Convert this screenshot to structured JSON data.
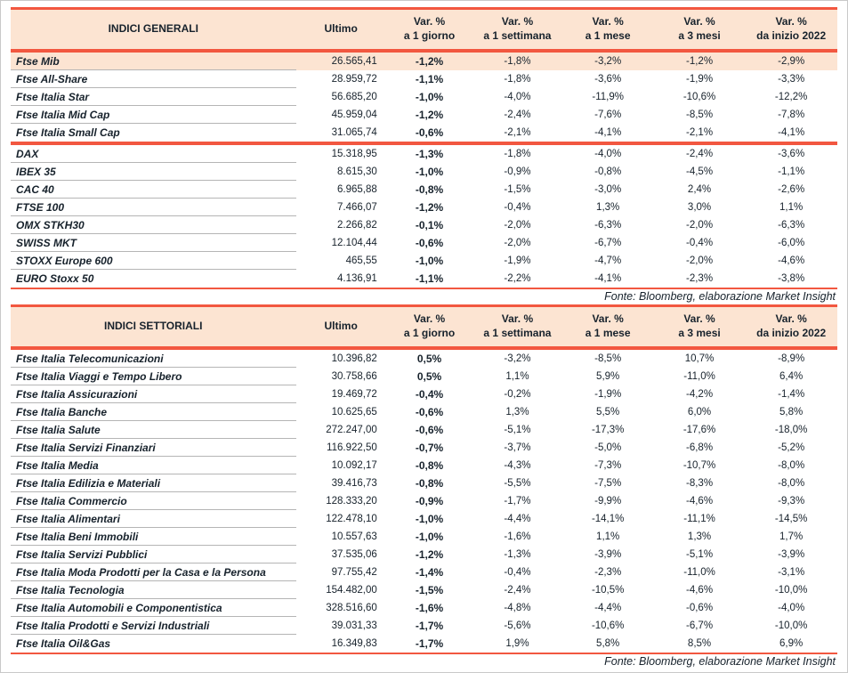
{
  "colors": {
    "accent_red": "#f25740",
    "header_bg": "#fce4d2",
    "highlight_row_bg": "#fce4d2",
    "text": "#17222c",
    "divider_gray": "#b5b5b5",
    "page_border": "#c9c9c9"
  },
  "tables": [
    {
      "title": "INDICI GENERALI",
      "ultimo_header": "Ultimo",
      "var_top": "Var. %",
      "var_periods": [
        "a 1 giorno",
        "a 1 settimana",
        "a 1 mese",
        "a 3 mesi",
        "da inizio 2022"
      ],
      "fonte": "Fonte: Bloomberg, elaborazione Market Insight",
      "groups": [
        {
          "rows": [
            {
              "name": "Ftse Mib",
              "ultimo": "26.565,41",
              "vars": [
                "-1,2%",
                "-1,8%",
                "-3,2%",
                "-1,2%",
                "-2,9%"
              ],
              "highlight": true
            },
            {
              "name": "Ftse All-Share",
              "ultimo": "28.959,72",
              "vars": [
                "-1,1%",
                "-1,8%",
                "-3,6%",
                "-1,9%",
                "-3,3%"
              ]
            },
            {
              "name": "Ftse Italia Star",
              "ultimo": "56.685,20",
              "vars": [
                "-1,0%",
                "-4,0%",
                "-11,9%",
                "-10,6%",
                "-12,2%"
              ]
            },
            {
              "name": "Ftse Italia Mid Cap",
              "ultimo": "45.959,04",
              "vars": [
                "-1,2%",
                "-2,4%",
                "-7,6%",
                "-8,5%",
                "-7,8%"
              ]
            },
            {
              "name": "Ftse Italia Small Cap",
              "ultimo": "31.065,74",
              "vars": [
                "-0,6%",
                "-2,1%",
                "-4,1%",
                "-2,1%",
                "-4,1%"
              ]
            }
          ]
        },
        {
          "rows": [
            {
              "name": "DAX",
              "ultimo": "15.318,95",
              "vars": [
                "-1,3%",
                "-1,8%",
                "-4,0%",
                "-2,4%",
                "-3,6%"
              ]
            },
            {
              "name": "IBEX 35",
              "ultimo": "8.615,30",
              "vars": [
                "-1,0%",
                "-0,9%",
                "-0,8%",
                "-4,5%",
                "-1,1%"
              ]
            },
            {
              "name": "CAC 40",
              "ultimo": "6.965,88",
              "vars": [
                "-0,8%",
                "-1,5%",
                "-3,0%",
                "2,4%",
                "-2,6%"
              ]
            },
            {
              "name": "FTSE 100",
              "ultimo": "7.466,07",
              "vars": [
                "-1,2%",
                "-0,4%",
                "1,3%",
                "3,0%",
                "1,1%"
              ]
            },
            {
              "name": "OMX STKH30",
              "ultimo": "2.266,82",
              "vars": [
                "-0,1%",
                "-2,0%",
                "-6,3%",
                "-2,0%",
                "-6,3%"
              ]
            },
            {
              "name": "SWISS MKT",
              "ultimo": "12.104,44",
              "vars": [
                "-0,6%",
                "-2,0%",
                "-6,7%",
                "-0,4%",
                "-6,0%"
              ]
            },
            {
              "name": "STOXX Europe 600",
              "ultimo": "465,55",
              "vars": [
                "-1,0%",
                "-1,9%",
                "-4,7%",
                "-2,0%",
                "-4,6%"
              ]
            },
            {
              "name": "EURO Stoxx 50",
              "ultimo": "4.136,91",
              "vars": [
                "-1,1%",
                "-2,2%",
                "-4,1%",
                "-2,3%",
                "-3,8%"
              ]
            }
          ]
        }
      ]
    },
    {
      "title": "INDICI SETTORIALI",
      "ultimo_header": "Ultimo",
      "var_top": "Var. %",
      "var_periods": [
        "a 1 giorno",
        "a 1 settimana",
        "a 1 mese",
        "a 3 mesi",
        "da inizio 2022"
      ],
      "fonte": "Fonte: Bloomberg, elaborazione Market Insight",
      "groups": [
        {
          "rows": [
            {
              "name": "Ftse Italia Telecomunicazioni",
              "ultimo": "10.396,82",
              "vars": [
                "0,5%",
                "-3,2%",
                "-8,5%",
                "10,7%",
                "-8,9%"
              ]
            },
            {
              "name": "Ftse Italia Viaggi e Tempo Libero",
              "ultimo": "30.758,66",
              "vars": [
                "0,5%",
                "1,1%",
                "5,9%",
                "-11,0%",
                "6,4%"
              ]
            },
            {
              "name": "Ftse Italia Assicurazioni",
              "ultimo": "19.469,72",
              "vars": [
                "-0,4%",
                "-0,2%",
                "-1,9%",
                "-4,2%",
                "-1,4%"
              ]
            },
            {
              "name": "Ftse Italia Banche",
              "ultimo": "10.625,65",
              "vars": [
                "-0,6%",
                "1,3%",
                "5,5%",
                "6,0%",
                "5,8%"
              ]
            },
            {
              "name": "Ftse Italia Salute",
              "ultimo": "272.247,00",
              "vars": [
                "-0,6%",
                "-5,1%",
                "-17,3%",
                "-17,6%",
                "-18,0%"
              ]
            },
            {
              "name": "Ftse Italia Servizi Finanziari",
              "ultimo": "116.922,50",
              "vars": [
                "-0,7%",
                "-3,7%",
                "-5,0%",
                "-6,8%",
                "-5,2%"
              ]
            },
            {
              "name": "Ftse Italia Media",
              "ultimo": "10.092,17",
              "vars": [
                "-0,8%",
                "-4,3%",
                "-7,3%",
                "-10,7%",
                "-8,0%"
              ]
            },
            {
              "name": "Ftse Italia Edilizia e Materiali",
              "ultimo": "39.416,73",
              "vars": [
                "-0,8%",
                "-5,5%",
                "-7,5%",
                "-8,3%",
                "-8,0%"
              ]
            },
            {
              "name": "Ftse Italia Commercio",
              "ultimo": "128.333,20",
              "vars": [
                "-0,9%",
                "-1,7%",
                "-9,9%",
                "-4,6%",
                "-9,3%"
              ]
            },
            {
              "name": "Ftse Italia Alimentari",
              "ultimo": "122.478,10",
              "vars": [
                "-1,0%",
                "-4,4%",
                "-14,1%",
                "-11,1%",
                "-14,5%"
              ]
            },
            {
              "name": "Ftse Italia Beni Immobili",
              "ultimo": "10.557,63",
              "vars": [
                "-1,0%",
                "-1,6%",
                "1,1%",
                "1,3%",
                "1,7%"
              ]
            },
            {
              "name": "Ftse Italia Servizi Pubblici",
              "ultimo": "37.535,06",
              "vars": [
                "-1,2%",
                "-1,3%",
                "-3,9%",
                "-5,1%",
                "-3,9%"
              ]
            },
            {
              "name": "Ftse Italia Moda Prodotti per la Casa e la Persona",
              "ultimo": "97.755,42",
              "vars": [
                "-1,4%",
                "-0,4%",
                "-2,3%",
                "-11,0%",
                "-3,1%"
              ]
            },
            {
              "name": "Ftse Italia Tecnologia",
              "ultimo": "154.482,00",
              "vars": [
                "-1,5%",
                "-2,4%",
                "-10,5%",
                "-4,6%",
                "-10,0%"
              ]
            },
            {
              "name": "Ftse Italia Automobili e Componentistica",
              "ultimo": "328.516,60",
              "vars": [
                "-1,6%",
                "-4,8%",
                "-4,4%",
                "-0,6%",
                "-4,0%"
              ]
            },
            {
              "name": "Ftse Italia Prodotti e Servizi Industriali",
              "ultimo": "39.031,33",
              "vars": [
                "-1,7%",
                "-5,6%",
                "-10,6%",
                "-6,7%",
                "-10,0%"
              ]
            },
            {
              "name": "Ftse Italia Oil&Gas",
              "ultimo": "16.349,83",
              "vars": [
                "-1,7%",
                "1,9%",
                "5,8%",
                "8,5%",
                "6,9%"
              ]
            }
          ]
        }
      ]
    }
  ]
}
